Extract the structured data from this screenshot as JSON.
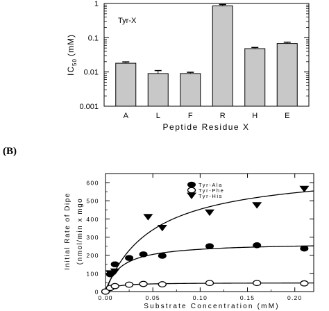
{
  "panel_b_label": "(B)",
  "chart_data": [
    {
      "type": "bar",
      "scale": "log",
      "annotation": "Tyr-X",
      "xlabel": "Peptide Residue X",
      "ylabel": "IC50 (mM)",
      "ylabel_parts": {
        "main": "IC",
        "sub": "50",
        "unit": "(mM)"
      },
      "ylim": [
        0.001,
        1
      ],
      "yticks": [
        {
          "value": 0.001,
          "label": "0.001"
        },
        {
          "value": 0.01,
          "label": "0.01"
        },
        {
          "value": 0.1,
          "label": "0.1"
        },
        {
          "value": 1,
          "label": "1"
        }
      ],
      "categories": [
        "A",
        "L",
        "F",
        "R",
        "H",
        "E"
      ],
      "values": [
        0.018,
        0.009,
        0.009,
        0.85,
        0.048,
        0.068
      ],
      "errors": [
        0.0017,
        0.002,
        0.0008,
        0.08,
        0.004,
        0.006
      ],
      "bar_color": "#c8c8c8",
      "grid": false
    },
    {
      "type": "scatter",
      "xlabel": "Substrate Concentration (mM)",
      "ylabel_line1": "Initial Rate of Dipe",
      "ylabel_line2": "(nmol/min x mgo",
      "xlim": [
        0,
        0.22
      ],
      "ylim": [
        0,
        650
      ],
      "xticks": [
        {
          "value": 0,
          "label": "0.00"
        },
        {
          "value": 0.05,
          "label": "0.05"
        },
        {
          "value": 0.1,
          "label": "0.10"
        },
        {
          "value": 0.15,
          "label": "0.15"
        },
        {
          "value": 0.2,
          "label": "0.20"
        }
      ],
      "yticks": [
        {
          "value": 0,
          "label": "0"
        },
        {
          "value": 100,
          "label": "100"
        },
        {
          "value": 200,
          "label": "200"
        },
        {
          "value": 300,
          "label": "300"
        },
        {
          "value": 400,
          "label": "400"
        },
        {
          "value": 500,
          "label": "500"
        },
        {
          "value": 600,
          "label": "600"
        }
      ],
      "legend_position": "top-right",
      "grid": false,
      "series": [
        {
          "name": "Tyr-Ala",
          "marker": "filled-ellipse",
          "x": [
            0.0,
            0.005,
            0.01,
            0.025,
            0.04,
            0.06,
            0.11,
            0.16,
            0.21
          ],
          "y": [
            0,
            95,
            150,
            185,
            205,
            197,
            250,
            255,
            237
          ],
          "fit": {
            "vmax": 270,
            "km": 0.016
          }
        },
        {
          "name": "Tyr-Phe",
          "marker": "open-ellipse",
          "x": [
            0.0,
            0.005,
            0.01,
            0.025,
            0.04,
            0.06,
            0.11,
            0.16,
            0.21
          ],
          "y": [
            0,
            20,
            30,
            38,
            42,
            40,
            47,
            47,
            45
          ],
          "fit": {
            "vmax": 49,
            "km": 0.008
          }
        },
        {
          "name": "Tyr-His",
          "marker": "filled-triangle-down",
          "x": [
            0.005,
            0.01,
            0.045,
            0.06,
            0.11,
            0.16,
            0.21
          ],
          "y": [
            100,
            110,
            410,
            350,
            435,
            475,
            565
          ],
          "fit": {
            "vmax": 680,
            "km": 0.05
          }
        }
      ]
    }
  ]
}
